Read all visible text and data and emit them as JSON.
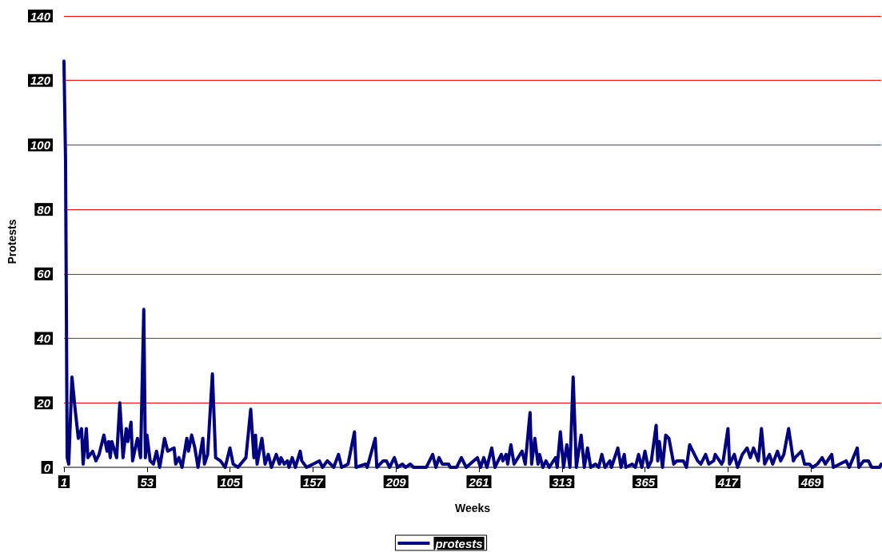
{
  "chart_data": {
    "type": "line",
    "xlabel": "Weeks",
    "ylabel": "Protests",
    "xlim": [
      1,
      513
    ],
    "xticks": [
      1,
      53,
      105,
      157,
      209,
      261,
      313,
      365,
      417,
      469
    ],
    "ylim": [
      0,
      140
    ],
    "yticks": [
      0,
      20,
      40,
      60,
      80,
      100,
      120,
      140
    ],
    "grid": "y",
    "legend": "bottom",
    "marker": "none",
    "line_style": "solid",
    "series": [
      {
        "name": "protests",
        "color": "#000080",
        "x": [
          1,
          2,
          3,
          4,
          6,
          8,
          10,
          12,
          13,
          15,
          16,
          19,
          21,
          23,
          26,
          28,
          29,
          30,
          31,
          34,
          36,
          38,
          40,
          41,
          43,
          44,
          47,
          49,
          51,
          52,
          53,
          55,
          57,
          59,
          61,
          64,
          66,
          70,
          71,
          73,
          75,
          78,
          79,
          81,
          83,
          85,
          88,
          89,
          91,
          94,
          96,
          99,
          102,
          105,
          107,
          110,
          115,
          118,
          120,
          121,
          122,
          125,
          127,
          129,
          131,
          134,
          136,
          137,
          139,
          141,
          142,
          144,
          146,
          149,
          150,
          153,
          157,
          161,
          163,
          166,
          170,
          173,
          175,
          179,
          183,
          184,
          190,
          191,
          196,
          197,
          201,
          203,
          205,
          208,
          210,
          213,
          215,
          218,
          220,
          228,
          232,
          234,
          236,
          238,
          242,
          243,
          247,
          250,
          253,
          260,
          262,
          264,
          266,
          269,
          271,
          273,
          275,
          276,
          278,
          279,
          281,
          283,
          288,
          290,
          293,
          294,
          296,
          298,
          299,
          301,
          303,
          305,
          309,
          310,
          312,
          314,
          316,
          318,
          320,
          322,
          325,
          327,
          329,
          331,
          334,
          336,
          338,
          340,
          343,
          344,
          348,
          350,
          352,
          353,
          357,
          359,
          361,
          363,
          365,
          367,
          369,
          372,
          373,
          374,
          376,
          378,
          380,
          383,
          385,
          389,
          391,
          393,
          394,
          396,
          398,
          400,
          403,
          405,
          408,
          409,
          413,
          414,
          417,
          418,
          421,
          423,
          426,
          429,
          431,
          433,
          436,
          438,
          440,
          443,
          445,
          448,
          450,
          452,
          455,
          458,
          459,
          463,
          465,
          468,
          470,
          473,
          476,
          478,
          482,
          483,
          487,
          491,
          493,
          498,
          499,
          502,
          505,
          507,
          512,
          513
        ],
        "values": [
          126,
          95,
          3,
          1,
          28,
          18,
          9,
          12,
          1,
          12,
          3,
          5,
          2,
          4,
          10,
          5,
          8,
          3,
          8,
          3,
          20,
          3,
          12,
          8,
          14,
          2,
          9,
          3,
          49,
          3,
          10,
          2,
          1,
          5,
          0,
          9,
          5,
          6,
          1,
          3,
          0,
          9,
          5,
          10,
          6,
          0,
          9,
          1,
          4,
          29,
          3,
          2,
          0,
          6,
          1,
          0,
          3,
          18,
          3,
          10,
          1,
          9,
          1,
          4,
          0,
          4,
          1,
          3,
          1,
          2,
          0,
          3,
          0,
          5,
          2,
          0,
          1,
          2,
          0,
          2,
          0,
          4,
          0,
          1,
          11,
          0,
          1,
          0,
          9,
          0,
          2,
          2,
          0,
          3,
          0,
          1,
          0,
          1,
          0,
          0,
          4,
          0,
          3,
          1,
          1,
          0,
          0,
          3,
          0,
          3,
          0,
          3,
          0,
          6,
          0,
          2,
          4,
          2,
          4,
          1,
          7,
          1,
          5,
          1,
          17,
          1,
          9,
          1,
          4,
          0,
          2,
          0,
          3,
          0,
          11,
          0,
          7,
          0,
          28,
          0,
          10,
          0,
          6,
          0,
          1,
          0,
          4,
          0,
          2,
          0,
          6,
          0,
          4,
          0,
          1,
          0,
          4,
          0,
          5,
          0,
          2,
          13,
          2,
          8,
          0,
          10,
          9,
          1,
          2,
          2,
          0,
          7,
          6,
          4,
          2,
          1,
          4,
          1,
          2,
          4,
          1,
          2,
          12,
          1,
          4,
          0,
          4,
          6,
          3,
          6,
          2,
          12,
          1,
          4,
          1,
          5,
          2,
          4,
          12,
          2,
          3,
          5,
          1,
          1,
          0,
          1,
          3,
          1,
          4,
          0,
          1,
          2,
          0,
          6,
          0,
          2,
          2,
          0,
          0,
          1
        ]
      }
    ]
  }
}
